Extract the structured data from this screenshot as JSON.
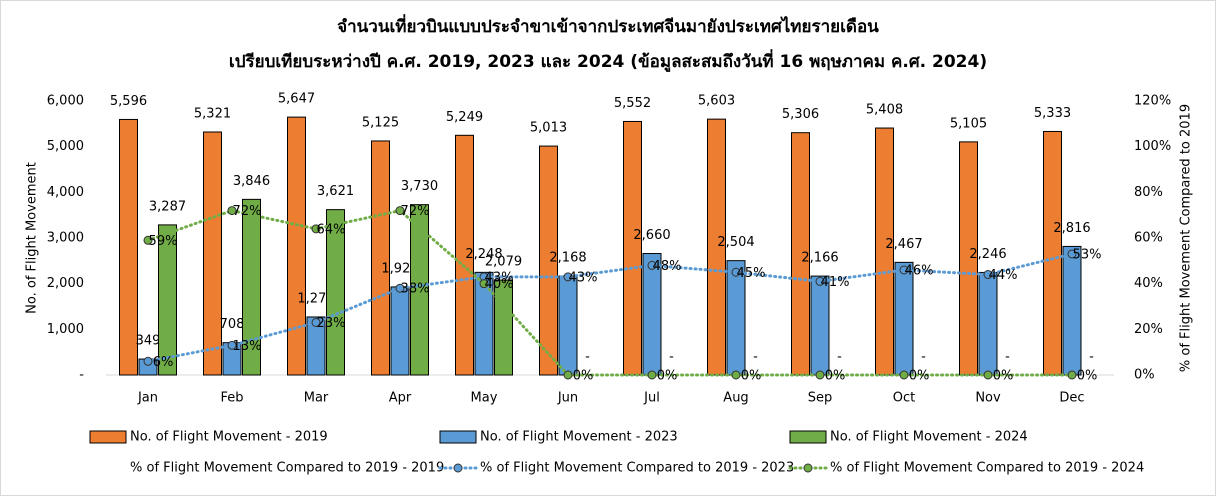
{
  "chart_data": {
    "type": "bar",
    "title": [
      "จำนวนเที่ยวบินแบบประจำขาเข้าจากประเทศจีนมายังประเทศไทยรายเดือน",
      "เปรียบเทียบระหว่างปี ค.ศ. 2019, 2023 และ 2024 (ข้อมูลสะสมถึงวันที่ 16 พฤษภาคม ค.ศ. 2024)"
    ],
    "y_label": "No. of Flight Movement",
    "y2_label": "% of Flight Movement Compared to 2019",
    "categories": [
      "Jan",
      "Feb",
      "Mar",
      "Apr",
      "May",
      "Jun",
      "Jul",
      "Aug",
      "Sep",
      "Oct",
      "Nov",
      "Dec"
    ],
    "ylim": [
      0,
      6000
    ],
    "yticks": [
      {
        "value": 0,
        "label": "-"
      },
      {
        "value": 1000,
        "label": "1,000"
      },
      {
        "value": 2000,
        "label": "2,000"
      },
      {
        "value": 3000,
        "label": "3,000"
      },
      {
        "value": 4000,
        "label": "4,000"
      },
      {
        "value": 5000,
        "label": "5,000"
      },
      {
        "value": 6000,
        "label": "6,000"
      }
    ],
    "y2lim": [
      0,
      120
    ],
    "y2ticks": [
      {
        "value": 0,
        "label": "0%"
      },
      {
        "value": 20,
        "label": "20%"
      },
      {
        "value": 40,
        "label": "40%"
      },
      {
        "value": 60,
        "label": "60%"
      },
      {
        "value": 80,
        "label": "80%"
      },
      {
        "value": 100,
        "label": "100%"
      },
      {
        "value": 120,
        "label": "120%"
      }
    ],
    "series": [
      {
        "name": "No. of Flight Movement - 2019",
        "type": "bar",
        "color": "#ed7d31",
        "values": [
          5596,
          5321,
          5647,
          5125,
          5249,
          5013,
          5552,
          5603,
          5306,
          5408,
          5105,
          5333
        ],
        "value_labels": [
          "5,596",
          "5,321",
          "5,647",
          "5,125",
          "5,249",
          "5,013",
          "5,552",
          "5,603",
          "5,306",
          "5,408",
          "5,105",
          "5,333"
        ]
      },
      {
        "name": "No. of Flight Movement - 2023",
        "type": "bar",
        "color": "#5b9bd5",
        "values": [
          349,
          708,
          1271,
          1929,
          2248,
          2168,
          2660,
          2504,
          2166,
          2467,
          2246,
          2816
        ],
        "value_labels": [
          "349",
          "708",
          "1,271",
          "1,929",
          "2,248",
          "2,168",
          "2,660",
          "2,504",
          "2,166",
          "2,467",
          "2,246",
          "2,816"
        ]
      },
      {
        "name": "No. of Flight Movement - 2024",
        "type": "bar",
        "color": "#70ad47",
        "values": [
          3287,
          3846,
          3621,
          3730,
          2079,
          0,
          0,
          0,
          0,
          0,
          0,
          0
        ],
        "value_labels": [
          "3,287",
          "3,846",
          "3,621",
          "3,730",
          "2,079",
          "-",
          "-",
          "-",
          "-",
          "-",
          "-",
          "-"
        ]
      },
      {
        "name": "% of Flight Movement Compared to 2019 - 2019",
        "type": "line",
        "axis": "y2",
        "color": "#ed7d31",
        "values": [
          null,
          null,
          null,
          null,
          null,
          null,
          null,
          null,
          null,
          null,
          null,
          null
        ]
      },
      {
        "name": "% of Flight Movement Compared to 2019 - 2023",
        "type": "line",
        "axis": "y2",
        "color": "#5b9bd5",
        "values": [
          6,
          13,
          23,
          38,
          43,
          43,
          48,
          45,
          41,
          46,
          44,
          53
        ],
        "value_labels": [
          "6%",
          "13%",
          "23%",
          "38%",
          "43%",
          "43%",
          "48%",
          "45%",
          "41%",
          "46%",
          "44%",
          "53%"
        ]
      },
      {
        "name": "% of Flight Movement Compared to 2019 - 2024",
        "type": "line",
        "axis": "y2",
        "color": "#70ad47",
        "values": [
          59,
          72,
          64,
          72,
          40,
          0,
          0,
          0,
          0,
          0,
          0,
          0
        ],
        "value_labels": [
          "59%",
          "72%",
          "64%",
          "72%",
          "40%",
          "0%",
          "0%",
          "0%",
          "0%",
          "0%",
          "0%",
          "0%"
        ]
      }
    ]
  }
}
